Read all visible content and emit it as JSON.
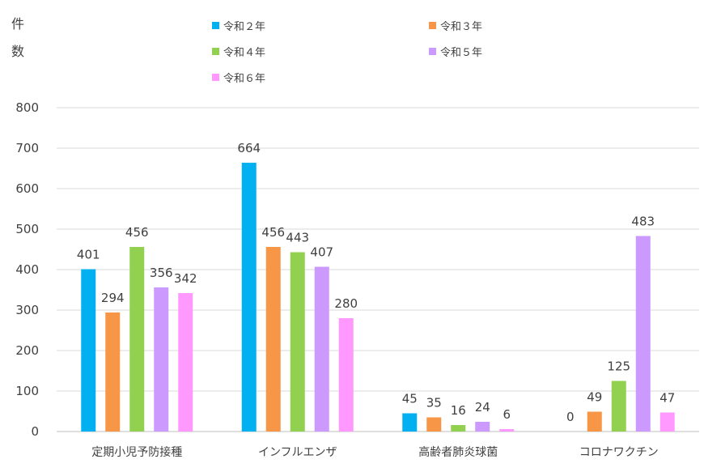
{
  "chart_data": {
    "type": "bar",
    "ylabel": "件数",
    "categories": [
      "定期小児予防接種",
      "インフルエンザ",
      "高齢者肺炎球菌",
      "コロナワクチン"
    ],
    "series": [
      {
        "name": "令和２年",
        "color": "#00B0F0",
        "values": [
          401,
          664,
          45,
          0
        ]
      },
      {
        "name": "令和３年",
        "color": "#F79646",
        "values": [
          294,
          456,
          35,
          49
        ]
      },
      {
        "name": "令和４年",
        "color": "#92D050",
        "values": [
          456,
          443,
          16,
          125
        ]
      },
      {
        "name": "令和５年",
        "color": "#CC99FF",
        "values": [
          356,
          407,
          24,
          483
        ]
      },
      {
        "name": "令和６年",
        "color": "#FF99FF",
        "values": [
          342,
          280,
          6,
          47
        ]
      }
    ],
    "ylim": [
      0,
      800
    ],
    "yticks": [
      0,
      100,
      200,
      300,
      400,
      500,
      600,
      700,
      800
    ],
    "grid": true,
    "legend_position": "top"
  }
}
